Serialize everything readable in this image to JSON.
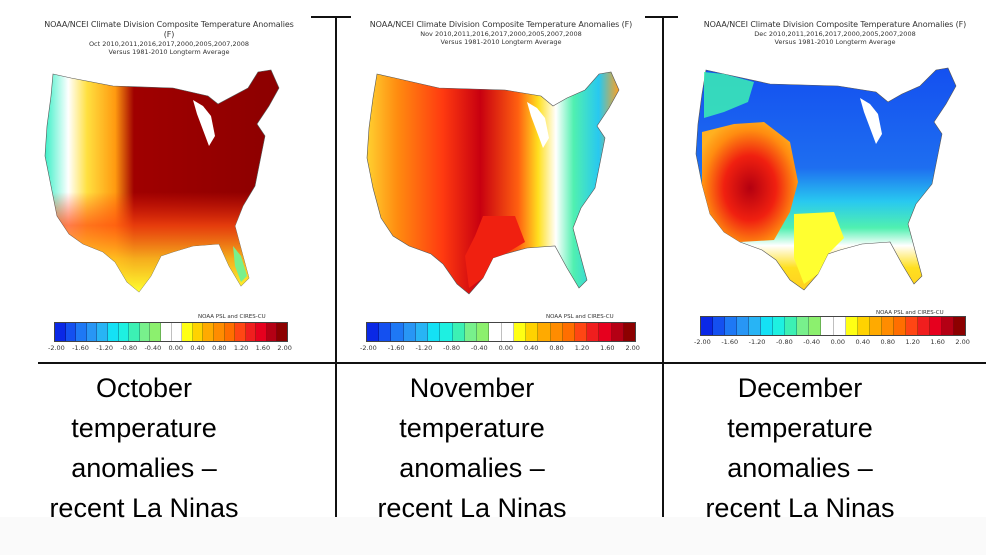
{
  "panels": [
    {
      "id": "october",
      "title": "NOAA/NCEI Climate Division Composite Temperature Anomalies (F)",
      "subtitle": "Oct  2010,2011,2016,2017,2000,2005,2007,2008",
      "baseline": "Versus 1981-2010 Longterm Average",
      "credit": "NOAA PSL and CIRES-CU",
      "map_pattern": "Strong warm anomalies (+1.6 to +2.0 F) across central/eastern US; orange-red in southwest; yellow along Gulf coast; cool (teal/green) in Pacific Northwest and Florida",
      "caption_lines": [
        "October",
        "temperature",
        "anomalies –",
        "recent La Ninas"
      ]
    },
    {
      "id": "november",
      "title": "NOAA/NCEI Climate Division Composite Temperature Anomalies (F)",
      "subtitle": "Nov  2010,2011,2016,2017,2000,2005,2007,2008",
      "baseline": "Versus 1981-2010 Longterm Average",
      "credit": "NOAA PSL and CIRES-CU",
      "map_pattern": "Warm anomalies across west and central US peaking in upper Midwest; yellow through Ohio Valley; cool (teal/cyan) along Southeast and mid-Atlantic coast",
      "caption_lines": [
        "November",
        "temperature",
        "anomalies –",
        "recent La Ninas"
      ]
    },
    {
      "id": "december",
      "title": "NOAA/NCEI Climate Division Composite Temperature Anomalies (F)",
      "subtitle": "Dec  2010,2011,2016,2017,2000,2005,2007,2008",
      "baseline": "Versus 1981-2010 Longterm Average",
      "credit": "NOAA PSL and CIRES-CU",
      "map_pattern": "Cold anomalies (-1.6 to -2.0 F) across northern plains, Midwest and Northeast; warm (red) in Southwest; yellow along Gulf coast and Florida",
      "caption_lines": [
        "December",
        "temperature",
        "anomalies –",
        "recent La Ninas"
      ]
    }
  ],
  "colorbar": {
    "unit": "F",
    "ticks": [
      "-2.00",
      "-1.60",
      "-1.20",
      "-0.80",
      "-0.40",
      "0.00",
      "0.40",
      "0.80",
      "1.20",
      "1.60",
      "2.00"
    ],
    "colors": [
      "#0a28e6",
      "#1450f0",
      "#1e78f5",
      "#2896f5",
      "#28b4f5",
      "#14e1f5",
      "#1ef0e1",
      "#3cf0b4",
      "#78f08c",
      "#8cf06e",
      "#ffffff",
      "#ffffff",
      "#ffff14",
      "#ffd200",
      "#ffaa00",
      "#ff8c00",
      "#ff6e00",
      "#ff4614",
      "#f01e1e",
      "#e6001e",
      "#b40014",
      "#8c0000"
    ]
  }
}
